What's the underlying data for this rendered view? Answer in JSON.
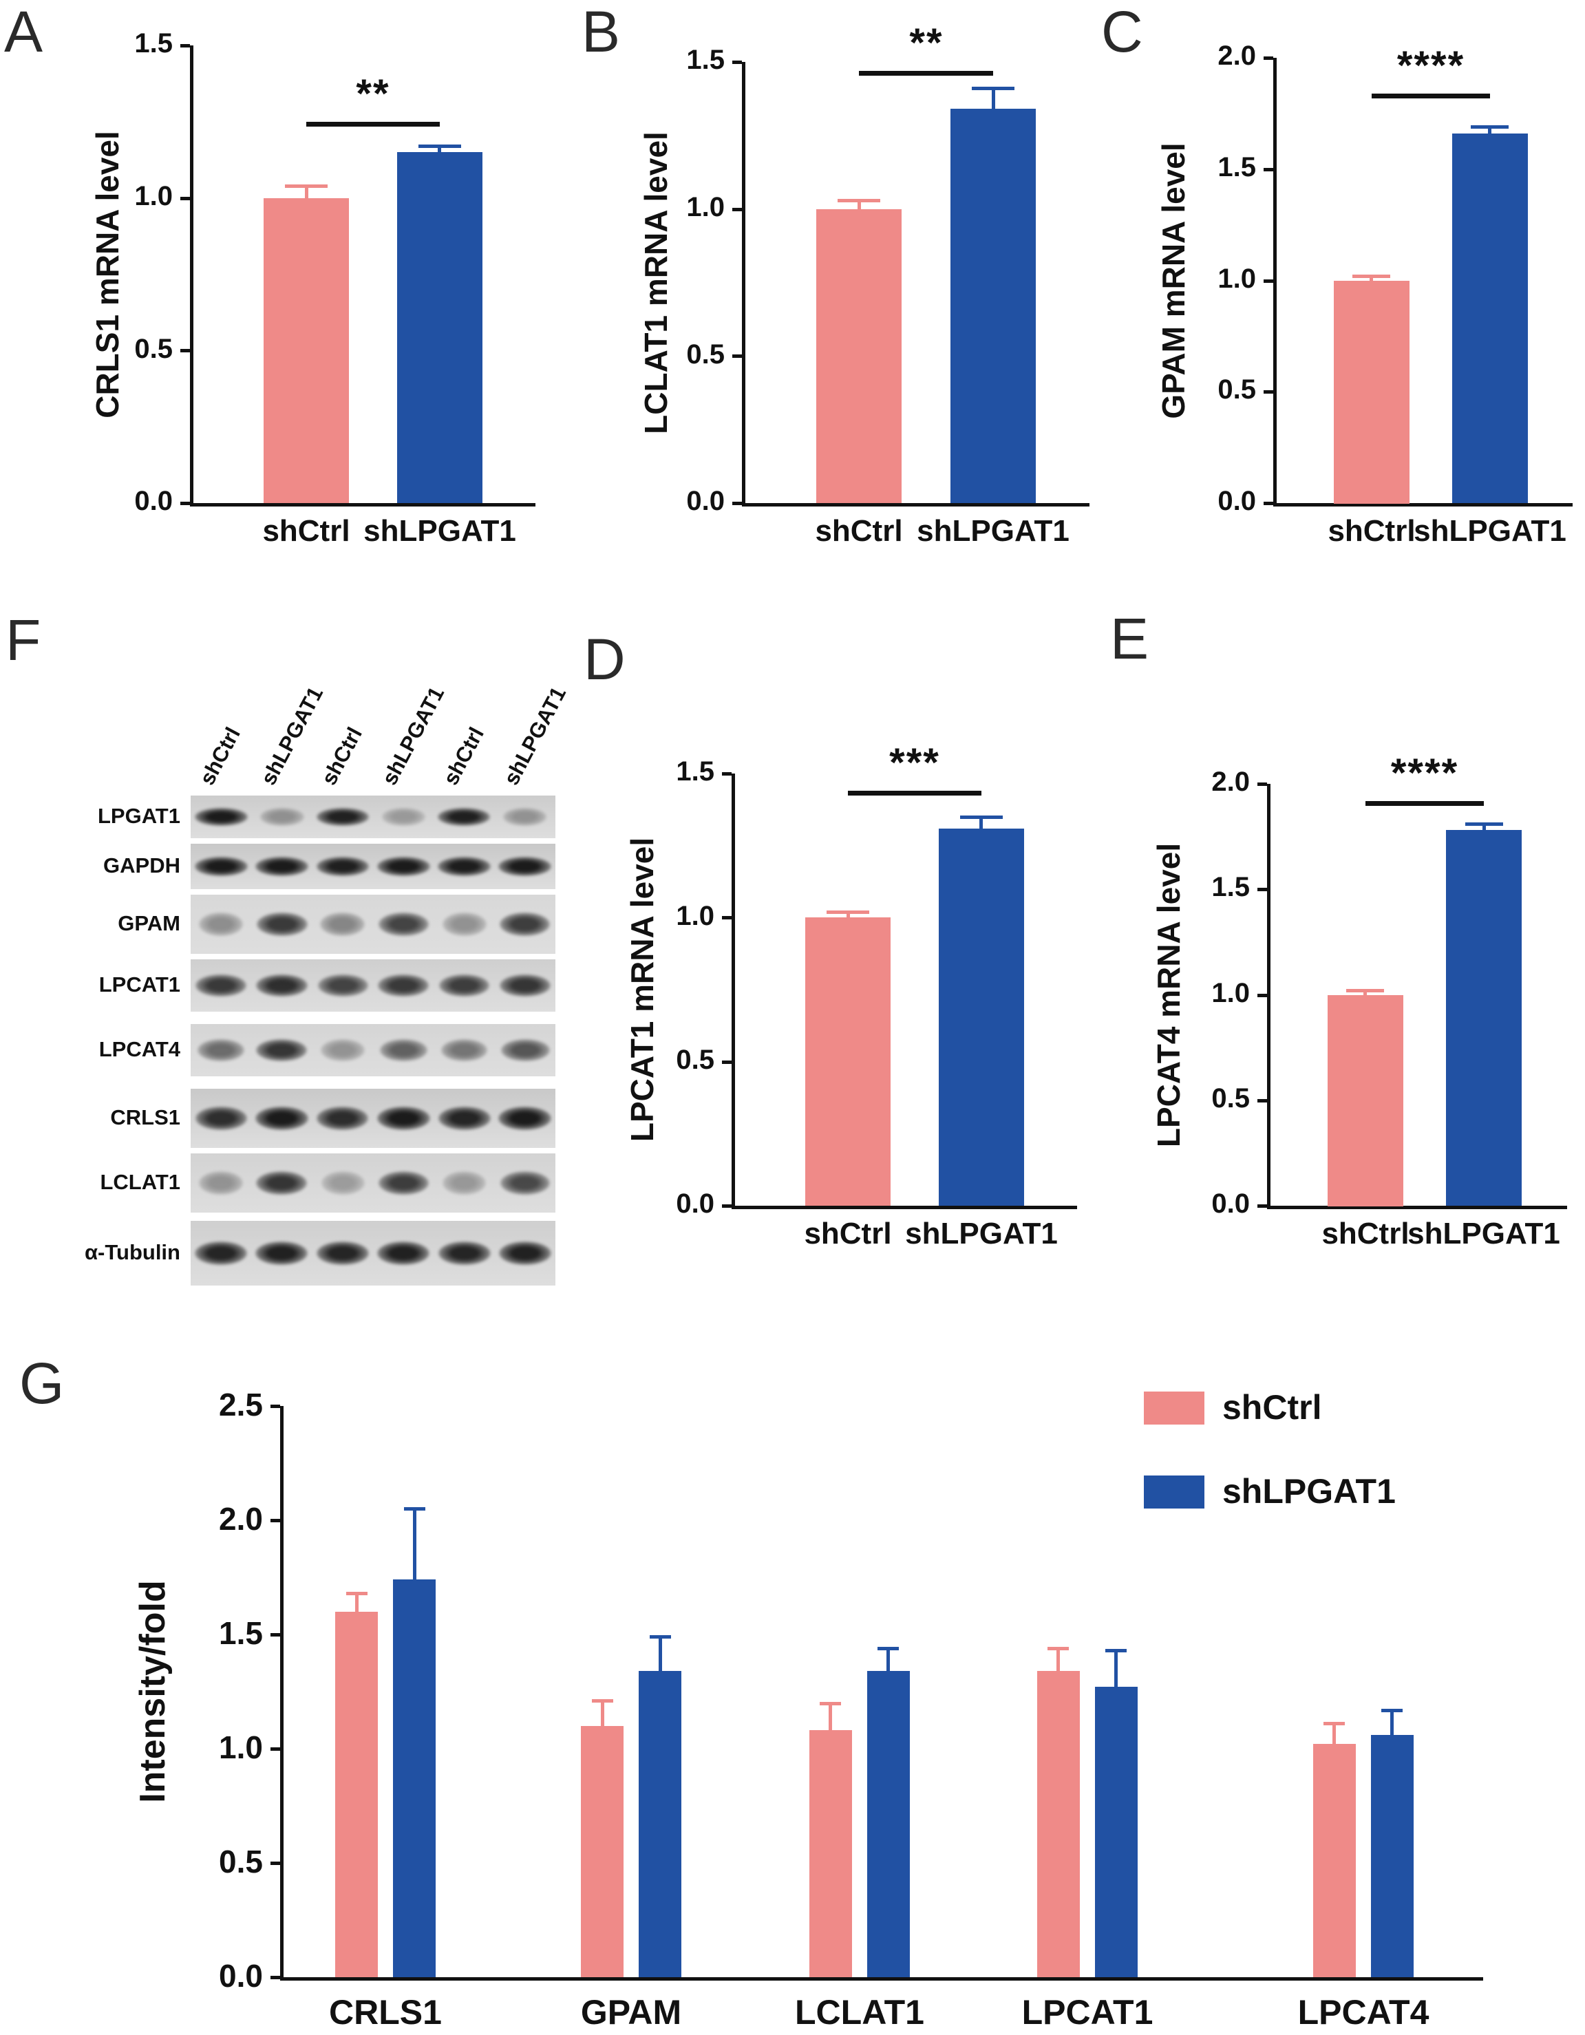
{
  "figure": {
    "background": "#ffffff",
    "colors": {
      "shCtrl": "#EF8A88",
      "shLPGAT1": "#2151A3",
      "axis": "#111111",
      "text": "#111111"
    }
  },
  "panels": {
    "A": {
      "letter": "A"
    },
    "B": {
      "letter": "B"
    },
    "C": {
      "letter": "C"
    },
    "D": {
      "letter": "D"
    },
    "E": {
      "letter": "E"
    },
    "F": {
      "letter": "F"
    },
    "G": {
      "letter": "G"
    }
  },
  "chart_data": [
    {
      "id": "A",
      "type": "bar",
      "title": "",
      "ylabel": "CRLS1 mRNA level",
      "xlabel": "",
      "ylim": [
        0,
        1.5
      ],
      "yticks": [
        0,
        0.5,
        1.0,
        1.5
      ],
      "categories": [
        "shCtrl",
        "shLPGAT1"
      ],
      "values": [
        1.0,
        1.15
      ],
      "errors": [
        0.04,
        0.02
      ],
      "bar_colors": [
        "shCtrl",
        "shLPGAT1"
      ],
      "significance": {
        "label": "**",
        "y": 1.25
      }
    },
    {
      "id": "B",
      "type": "bar",
      "title": "",
      "ylabel": "LCLAT1 mRNA level",
      "xlabel": "",
      "ylim": [
        0,
        1.5
      ],
      "yticks": [
        0,
        0.5,
        1.0,
        1.5
      ],
      "categories": [
        "shCtrl",
        "shLPGAT1"
      ],
      "values": [
        1.0,
        1.34
      ],
      "errors": [
        0.03,
        0.07
      ],
      "bar_colors": [
        "shCtrl",
        "shLPGAT1"
      ],
      "significance": {
        "label": "**",
        "y": 1.47
      }
    },
    {
      "id": "C",
      "type": "bar",
      "title": "",
      "ylabel": "GPAM mRNA level",
      "xlabel": "",
      "ylim": [
        0,
        2.0
      ],
      "yticks": [
        0,
        0.5,
        1.0,
        1.5,
        2.0
      ],
      "categories": [
        "shCtrl",
        "shLPGAT1"
      ],
      "values": [
        1.0,
        1.66
      ],
      "errors": [
        0.02,
        0.03
      ],
      "bar_colors": [
        "shCtrl",
        "shLPGAT1"
      ],
      "significance": {
        "label": "****",
        "y": 1.84
      }
    },
    {
      "id": "D",
      "type": "bar",
      "title": "",
      "ylabel": "LPCAT1 mRNA level",
      "xlabel": "",
      "ylim": [
        0,
        1.5
      ],
      "yticks": [
        0,
        0.5,
        1.0,
        1.5
      ],
      "categories": [
        "shCtrl",
        "shLPGAT1"
      ],
      "values": [
        1.0,
        1.31
      ],
      "errors": [
        0.02,
        0.04
      ],
      "bar_colors": [
        "shCtrl",
        "shLPGAT1"
      ],
      "significance": {
        "label": "***",
        "y": 1.44
      }
    },
    {
      "id": "E",
      "type": "bar",
      "title": "",
      "ylabel": "LPCAT4 mRNA level",
      "xlabel": "",
      "ylim": [
        0,
        2.0
      ],
      "yticks": [
        0,
        0.5,
        1.0,
        1.5,
        2.0
      ],
      "categories": [
        "shCtrl",
        "shLPGAT1"
      ],
      "values": [
        1.0,
        1.78
      ],
      "errors": [
        0.02,
        0.03
      ],
      "bar_colors": [
        "shCtrl",
        "shLPGAT1"
      ],
      "significance": {
        "label": "****",
        "y": 1.92
      }
    },
    {
      "id": "G",
      "type": "bar",
      "title": "",
      "ylabel": "Intensity/fold",
      "xlabel": "",
      "ylim": [
        0,
        2.5
      ],
      "yticks": [
        0,
        0.5,
        1.0,
        1.5,
        2.0,
        2.5
      ],
      "categories": [
        "CRLS1",
        "GPAM",
        "LCLAT1",
        "LPCAT1",
        "LPCAT4"
      ],
      "series": [
        {
          "name": "shCtrl",
          "values": [
            1.6,
            1.1,
            1.08,
            1.34,
            1.02
          ],
          "errors": [
            0.08,
            0.11,
            0.12,
            0.1,
            0.09
          ]
        },
        {
          "name": "shLPGAT1",
          "values": [
            1.74,
            1.34,
            1.34,
            1.27,
            1.06
          ],
          "errors": [
            0.31,
            0.15,
            0.1,
            0.16,
            0.11
          ]
        }
      ],
      "legend": {
        "position": "top-right",
        "entries": [
          "shCtrl",
          "shLPGAT1"
        ]
      }
    }
  ],
  "blot": {
    "lane_labels": [
      "shCtrl",
      "shLPGAT1",
      "shCtrl",
      "shLPGAT1",
      "shCtrl",
      "shLPGAT1"
    ],
    "rows": [
      {
        "label": "LPGAT1",
        "intensities": [
          0.95,
          0.35,
          0.92,
          0.3,
          0.93,
          0.34
        ]
      },
      {
        "label": "GAPDH",
        "intensities": [
          0.95,
          0.95,
          0.93,
          0.95,
          0.94,
          0.95
        ]
      },
      {
        "label": "GPAM",
        "intensities": [
          0.38,
          0.8,
          0.42,
          0.75,
          0.36,
          0.78
        ]
      },
      {
        "label": "LPCAT1",
        "intensities": [
          0.8,
          0.85,
          0.75,
          0.8,
          0.78,
          0.82
        ]
      },
      {
        "label": "LPCAT4",
        "intensities": [
          0.55,
          0.82,
          0.35,
          0.6,
          0.5,
          0.66
        ]
      },
      {
        "label": "CRLS1",
        "intensities": [
          0.85,
          0.95,
          0.86,
          0.95,
          0.9,
          0.95
        ]
      },
      {
        "label": "LCLAT1",
        "intensities": [
          0.35,
          0.82,
          0.3,
          0.78,
          0.32,
          0.72
        ]
      },
      {
        "label": "α-Tubulin",
        "intensities": [
          0.9,
          0.92,
          0.9,
          0.92,
          0.9,
          0.92
        ]
      }
    ]
  }
}
